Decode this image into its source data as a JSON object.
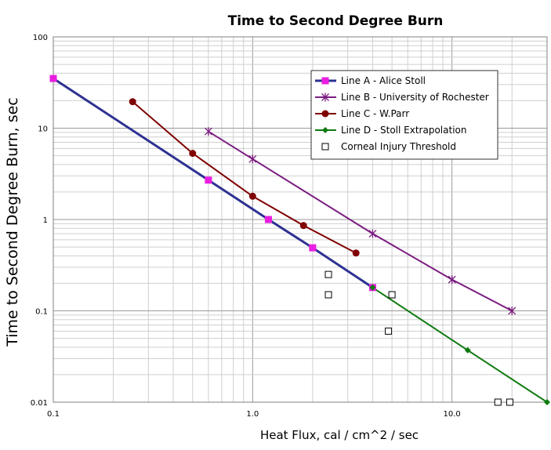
{
  "chart_data": {
    "type": "line",
    "title": "Time to Second Degree Burn",
    "xlabel": "Heat Flux, cal / cm^2 / sec",
    "ylabel": "Time to Second Degree Burn, sec",
    "x_scale": "log",
    "y_scale": "log",
    "xlim": [
      0.1,
      30
    ],
    "ylim": [
      0.01,
      100
    ],
    "x_ticks": [
      {
        "value": 0.1,
        "label": "0.1"
      },
      {
        "value": 1,
        "label": "1.0"
      },
      {
        "value": 10,
        "label": "10.0"
      }
    ],
    "y_ticks": [
      {
        "value": 100,
        "label": "100"
      },
      {
        "value": 10,
        "label": "10"
      },
      {
        "value": 1,
        "label": "1"
      },
      {
        "value": 0.1,
        "label": "0.1"
      },
      {
        "value": 0.01,
        "label": "0.01"
      }
    ],
    "grid": true,
    "legend_position": "top-right",
    "series": [
      {
        "name": "Line A - Alice Stoll",
        "color": "#2E3192",
        "marker": "square",
        "marker_color": "#E91EE0",
        "line_width": 3,
        "x": [
          0.1,
          0.6,
          1.2,
          2.0,
          4.0
        ],
        "y": [
          35,
          2.7,
          1.0,
          0.49,
          0.18
        ]
      },
      {
        "name": "Line B - University of Rochester",
        "color": "#7B1D80",
        "marker": "star",
        "marker_color": "#7B1D80",
        "line_width": 2,
        "x": [
          0.6,
          1.0,
          4.0,
          10.0,
          20.0
        ],
        "y": [
          9.2,
          4.6,
          0.7,
          0.22,
          0.1
        ]
      },
      {
        "name": "Line C - W.Parr",
        "color": "#7F0000",
        "marker": "circle",
        "marker_color": "#7F0000",
        "line_width": 2,
        "x": [
          0.25,
          0.5,
          1.0,
          1.8,
          3.3
        ],
        "y": [
          19.5,
          5.3,
          1.8,
          0.86,
          0.43
        ]
      },
      {
        "name": "Line D - Stoll Extrapolation",
        "color": "#0E7A0E",
        "marker": "diamond",
        "marker_color": "#0E7A0E",
        "line_width": 2,
        "x": [
          4.0,
          12.0,
          30.0
        ],
        "y": [
          0.18,
          0.037,
          0.01
        ]
      },
      {
        "name": "Corneal Injury Threshold",
        "color": "#000000",
        "marker": "open-square",
        "marker_color": "#000000",
        "line_width": 0,
        "x": [
          2.4,
          2.4,
          5.0,
          4.8,
          17.0,
          19.5
        ],
        "y": [
          0.25,
          0.15,
          0.15,
          0.06,
          0.01,
          0.01
        ]
      }
    ]
  }
}
